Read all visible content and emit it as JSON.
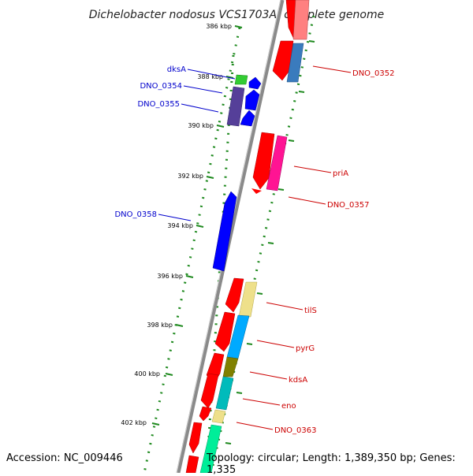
{
  "title": "Dichelobacter nodosus VCS1703A, complete genome",
  "footer": {
    "accession": "Accession: NC_009446",
    "topology": "Topology: circular; Length: 1,389,350 bp; Genes: 1,335"
  },
  "ticks": [
    "386 kbp",
    "388 kbp",
    "390 kbp",
    "392 kbp",
    "394 kbp",
    "396 kbp",
    "398 kbp",
    "400 kbp",
    "402 kbp"
  ],
  "colors": {
    "backbone": "#8a8a8a",
    "ruler_dots": "#1f8a1f",
    "forward_label": "#0000cc",
    "reverse_label": "#cc0000",
    "cds_reverse": "#ff0000",
    "cds_forward": "#0000ff"
  },
  "labels_left": [
    {
      "name": "dksA"
    },
    {
      "name": "DNO_0354"
    },
    {
      "name": "DNO_0355"
    },
    {
      "name": "DNO_0358"
    }
  ],
  "labels_right": [
    {
      "name": "DNO_0352"
    },
    {
      "name": "priA"
    },
    {
      "name": "DNO_0357"
    },
    {
      "name": "tilS"
    },
    {
      "name": "pyrG"
    },
    {
      "name": "kdsA"
    },
    {
      "name": "eno"
    },
    {
      "name": "DNO_0363"
    }
  ]
}
